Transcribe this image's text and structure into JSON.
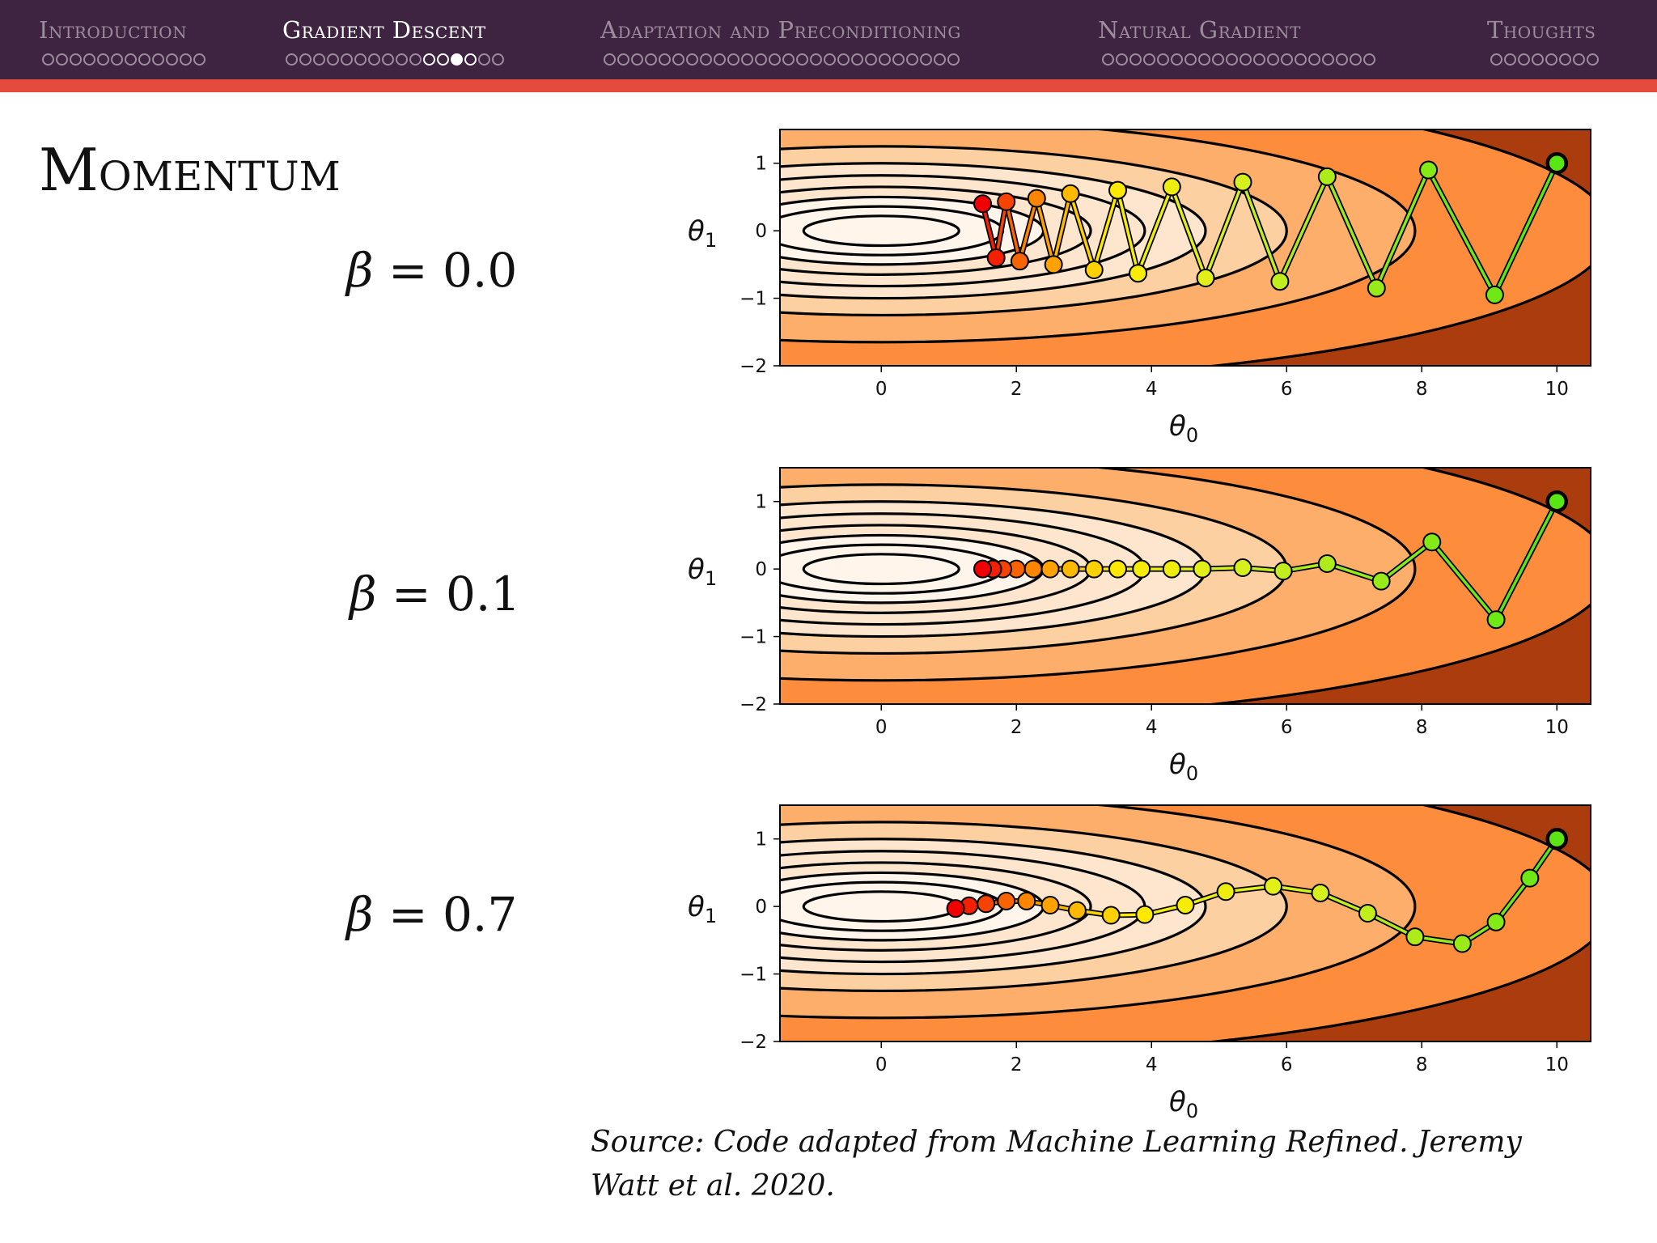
{
  "nav": {
    "sections": [
      {
        "label": "Introduction",
        "dots": 12,
        "active": false
      },
      {
        "label": "Gradient Descent",
        "dots": 16,
        "active": true,
        "current_dot": 12,
        "visited_dots": [
          10,
          11,
          12,
          13
        ]
      },
      {
        "label": "Adaptation and Preconditioning",
        "dots": 26,
        "active": false
      },
      {
        "label": "Natural Gradient",
        "dots": 20,
        "active": false
      },
      {
        "label": "Thoughts",
        "dots": 8,
        "active": false
      }
    ]
  },
  "slide": {
    "title": "Momentum",
    "betas": [
      "0.0",
      "0.1",
      "0.7"
    ],
    "caption": "Source: Code adapted from Machine Learning Refined. Jeremy Watt et al. 2020."
  },
  "colors": {
    "nav_bg": "#3e2440",
    "accent_line": "#e34b3c",
    "contour_fills": [
      "#fff5eb",
      "#fee6ce",
      "#fdd0a2",
      "#fdae6b",
      "#fd8d3c",
      "#ab3c0d"
    ]
  },
  "chart_data": [
    {
      "type": "scatter",
      "title": "",
      "xlabel": "θ0",
      "ylabel": "θ1",
      "xlim": [
        -1.5,
        10.5
      ],
      "ylim": [
        -2,
        1.5
      ],
      "xticks": [
        "0",
        "2",
        "4",
        "6",
        "8",
        "10"
      ],
      "yticks": [
        "1",
        "0",
        "−1",
        "−2"
      ],
      "beta": 0.0,
      "x": [
        10.0,
        9.08,
        8.1,
        7.33,
        6.6,
        5.9,
        5.35,
        4.8,
        4.3,
        3.8,
        3.5,
        3.15,
        2.8,
        2.55,
        2.3,
        2.05,
        1.85,
        1.7,
        1.5
      ],
      "y": [
        1.0,
        -0.95,
        0.9,
        -0.85,
        0.8,
        -0.75,
        0.72,
        -0.7,
        0.65,
        -0.63,
        0.6,
        -0.58,
        0.55,
        -0.5,
        0.48,
        -0.45,
        0.43,
        -0.4,
        0.4
      ]
    },
    {
      "type": "scatter",
      "title": "",
      "xlabel": "θ0",
      "ylabel": "θ1",
      "xlim": [
        -1.5,
        10.5
      ],
      "ylim": [
        -2,
        1.5
      ],
      "xticks": [
        "0",
        "2",
        "4",
        "6",
        "8",
        "10"
      ],
      "yticks": [
        "1",
        "0",
        "−1",
        "−2"
      ],
      "beta": 0.1,
      "x": [
        10.0,
        9.1,
        8.15,
        7.4,
        6.6,
        5.95,
        5.35,
        4.75,
        4.3,
        3.85,
        3.5,
        3.15,
        2.8,
        2.5,
        2.25,
        2.0,
        1.8,
        1.65,
        1.5
      ],
      "y": [
        1.0,
        -0.75,
        0.4,
        -0.18,
        0.08,
        -0.03,
        0.02,
        0.0,
        0.0,
        0.0,
        0.0,
        0.0,
        0.0,
        0.0,
        0.0,
        0.0,
        0.0,
        0.0,
        0.0
      ]
    },
    {
      "type": "scatter",
      "title": "",
      "xlabel": "θ0",
      "ylabel": "θ1",
      "xlim": [
        -1.5,
        10.5
      ],
      "ylim": [
        -2,
        1.5
      ],
      "xticks": [
        "0",
        "2",
        "4",
        "6",
        "8",
        "10"
      ],
      "yticks": [
        "1",
        "0",
        "−1",
        "−2"
      ],
      "beta": 0.7,
      "x": [
        10.0,
        9.6,
        9.1,
        8.6,
        7.9,
        7.2,
        6.5,
        5.8,
        5.1,
        4.5,
        3.9,
        3.4,
        2.9,
        2.5,
        2.15,
        1.85,
        1.55,
        1.3,
        1.1
      ],
      "y": [
        1.0,
        0.42,
        -0.23,
        -0.55,
        -0.45,
        -0.1,
        0.2,
        0.3,
        0.22,
        0.02,
        -0.12,
        -0.13,
        -0.06,
        0.02,
        0.08,
        0.08,
        0.04,
        0.01,
        -0.03
      ]
    }
  ]
}
